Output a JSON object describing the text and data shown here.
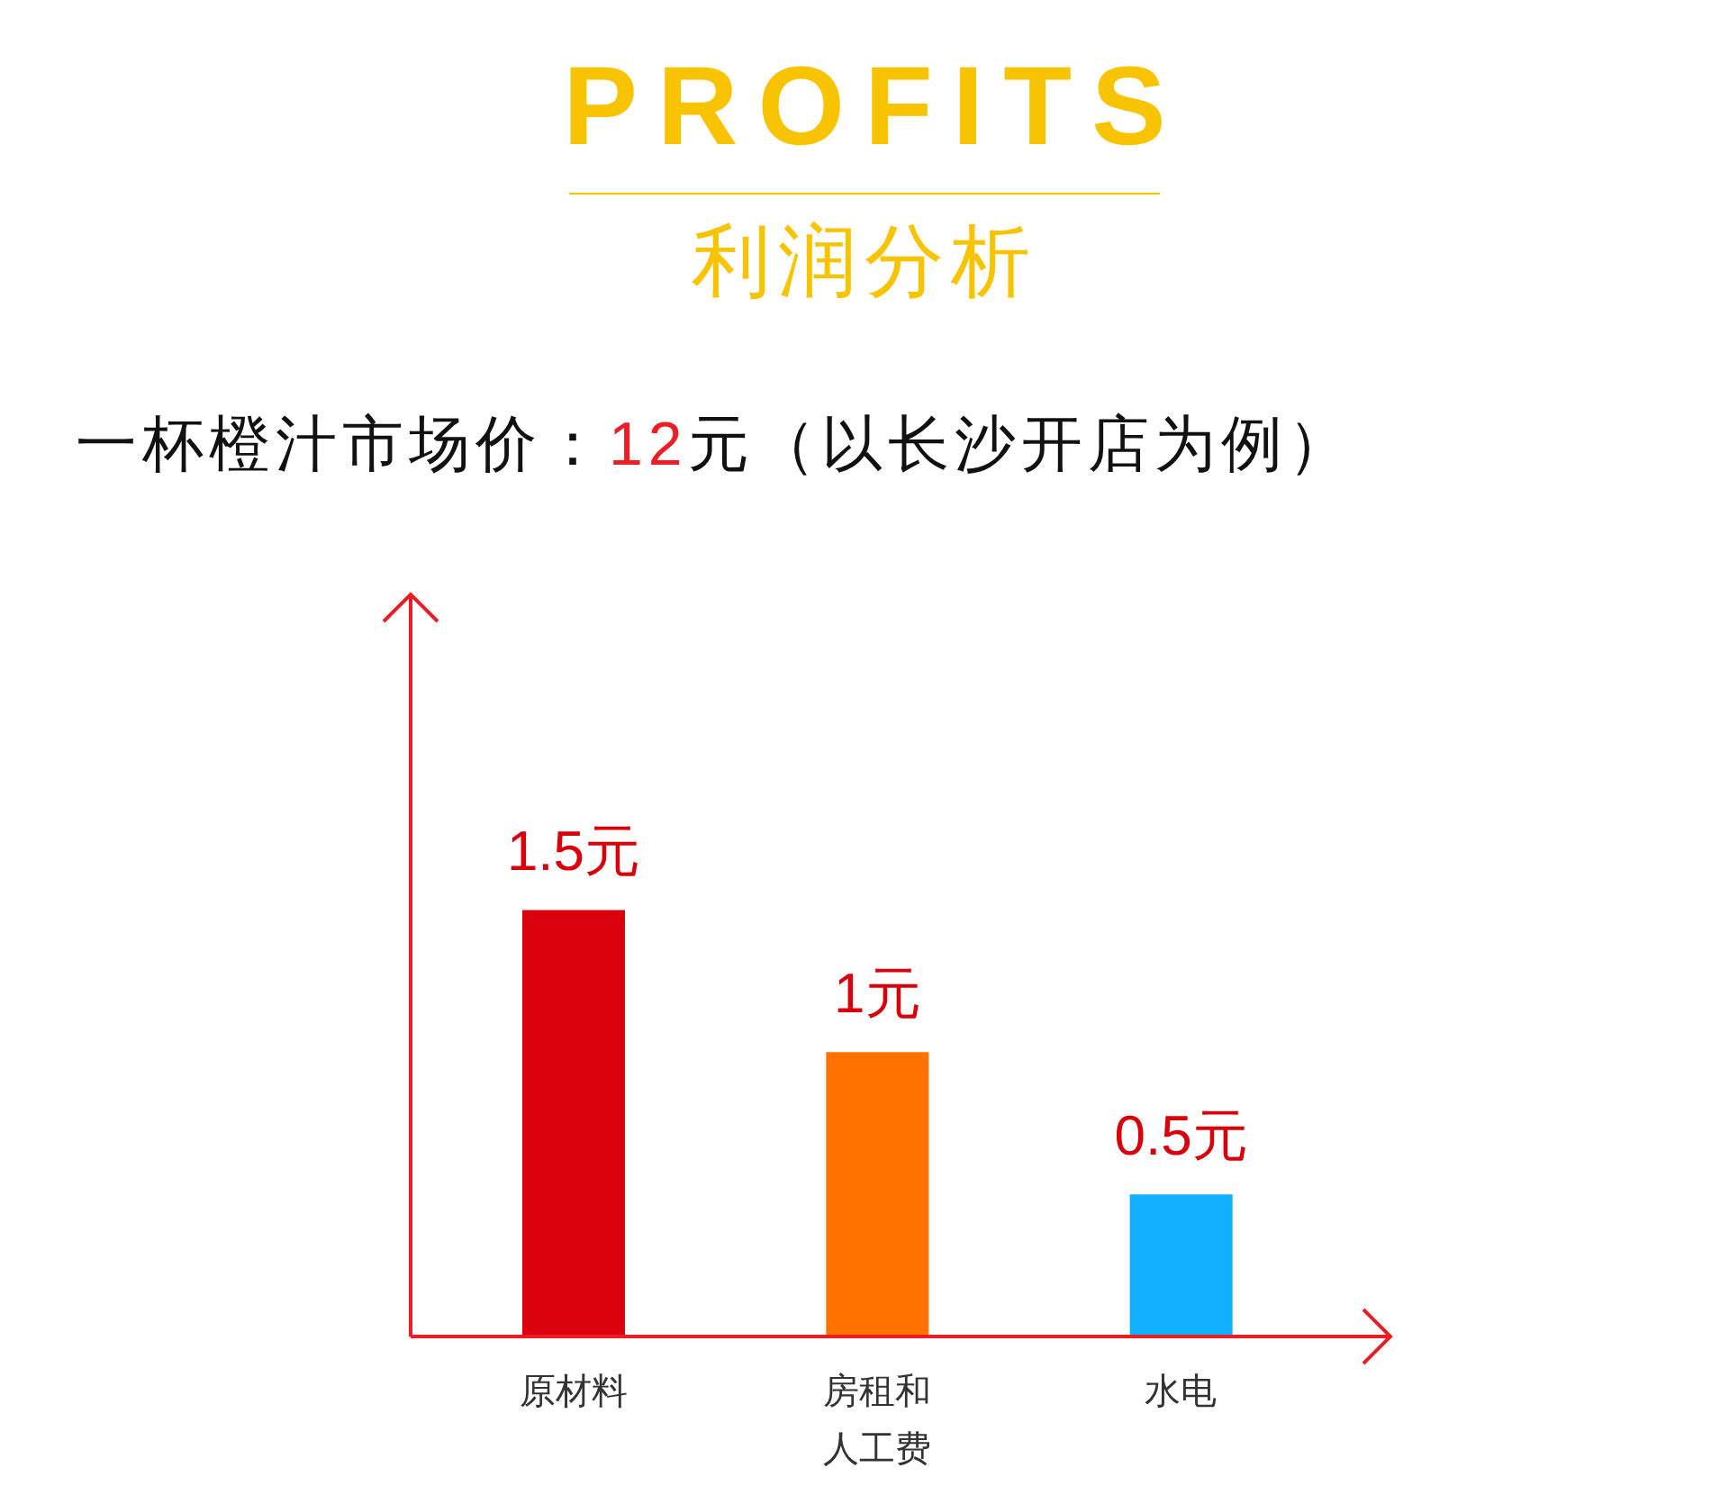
{
  "chart_data": {
    "type": "bar",
    "title": "PROFITS",
    "subtitle": "利润分析",
    "annotations": [
      "一杯橙汁市场价：12元（以长沙开店为例）"
    ],
    "categories": [
      "原材料",
      "房租和人工费",
      "水电"
    ],
    "values": [
      1.5,
      1,
      0.5
    ],
    "colors": [
      "#da000c",
      "#ff7200",
      "#10b0ff"
    ],
    "value_labels": [
      "1.5元",
      "1元",
      "0.5元"
    ],
    "tick_labels": "x"
  }
}
